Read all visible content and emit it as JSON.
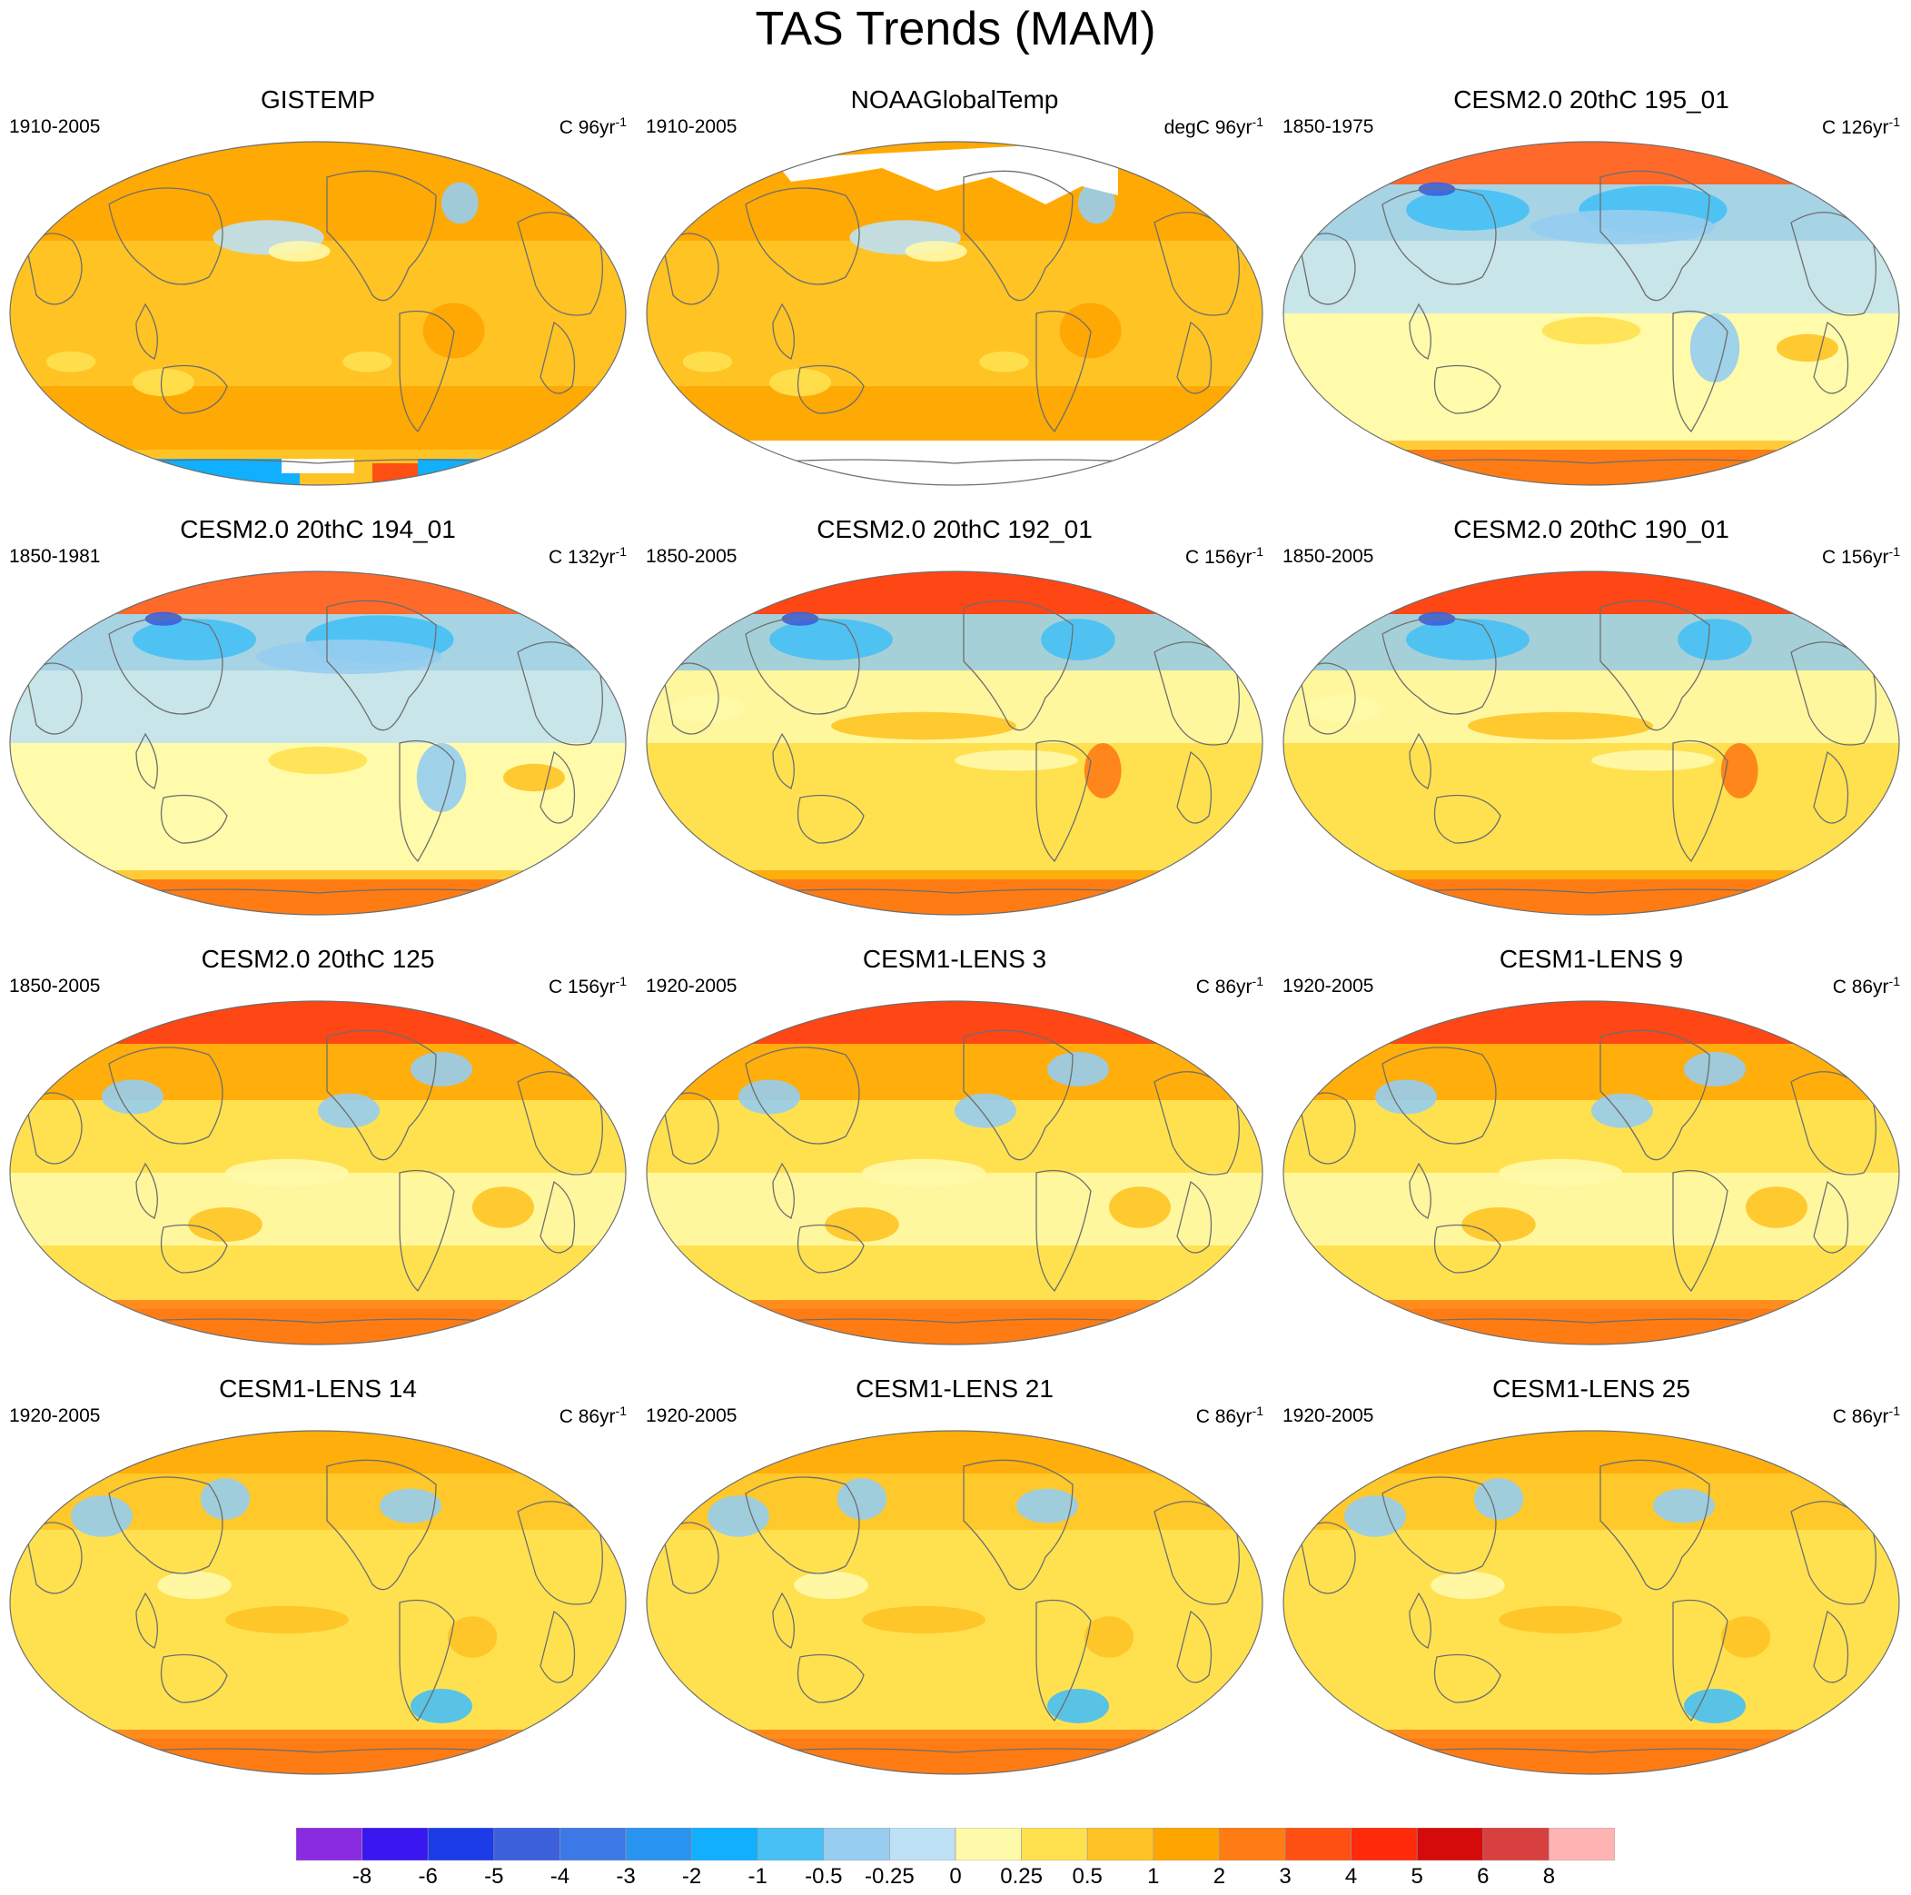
{
  "title": "TAS Trends (MAM)",
  "colors": [
    "#8a2be2",
    "#3a16f0",
    "#1c3ce8",
    "#3c5fdc",
    "#3c78e6",
    "#2894f0",
    "#10b0ff",
    "#46c0f5",
    "#96cdf0",
    "#bee1f5",
    "#fffaaa",
    "#ffe150",
    "#ffc325",
    "#ffa500",
    "#ff7c14",
    "#ff5014",
    "#ff2a0a",
    "#d50a0a",
    "#d84040",
    "#ffb4b4"
  ],
  "color_levels": [
    "-8",
    "-6",
    "-5",
    "-4",
    "-3",
    "-2",
    "-1",
    "-0.5",
    "-0.25",
    "0",
    "0.25",
    "0.5",
    "1",
    "2",
    "3",
    "4",
    "5",
    "6",
    "8"
  ],
  "panels": [
    {
      "title": "GISTEMP",
      "period": "1910-2005",
      "unit": "C 96yr",
      "scheme": "obs",
      "missing": "gis"
    },
    {
      "title": "NOAAGlobalTemp",
      "period": "1910-2005",
      "unit": "degC 96yr",
      "scheme": "obs",
      "missing": "noaa"
    },
    {
      "title": "CESM2.0 20thC 195_01",
      "period": "1850-1975",
      "unit": "C 126yr",
      "scheme": "cool",
      "missing": ""
    },
    {
      "title": "CESM2.0 20thC 194_01",
      "period": "1850-1981",
      "unit": "C 132yr",
      "scheme": "cool",
      "missing": ""
    },
    {
      "title": "CESM2.0 20thC 192_01",
      "period": "1850-2005",
      "unit": "C 156yr",
      "scheme": "mixed",
      "missing": ""
    },
    {
      "title": "CESM2.0 20thC 190_01",
      "period": "1850-2005",
      "unit": "C 156yr",
      "scheme": "mixed",
      "missing": ""
    },
    {
      "title": "CESM2.0 20thC 125",
      "period": "1850-2005",
      "unit": "C 156yr",
      "scheme": "warm",
      "missing": ""
    },
    {
      "title": "CESM1-LENS 3",
      "period": "1920-2005",
      "unit": "C 86yr",
      "scheme": "warm",
      "missing": ""
    },
    {
      "title": "CESM1-LENS 9",
      "period": "1920-2005",
      "unit": "C 86yr",
      "scheme": "warm",
      "missing": ""
    },
    {
      "title": "CESM1-LENS 14",
      "period": "1920-2005",
      "unit": "C 86yr",
      "scheme": "lens",
      "missing": ""
    },
    {
      "title": "CESM1-LENS 21",
      "period": "1920-2005",
      "unit": "C 86yr",
      "scheme": "lens",
      "missing": ""
    },
    {
      "title": "CESM1-LENS 25",
      "period": "1920-2005",
      "unit": "C 86yr",
      "scheme": "lens",
      "missing": ""
    }
  ]
}
